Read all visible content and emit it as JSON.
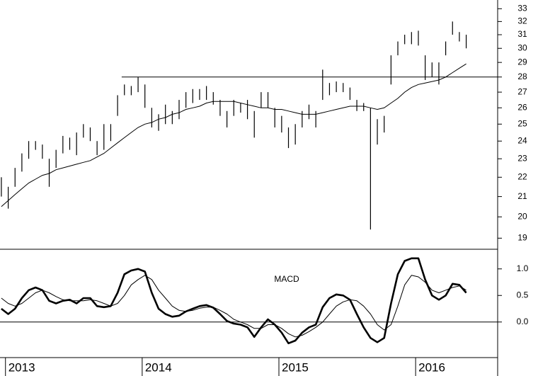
{
  "chart_data": [
    {
      "type": "ohlc",
      "x": [
        2012.97,
        2013.02,
        2013.07,
        2013.12,
        2013.17,
        2013.22,
        2013.27,
        2013.32,
        2013.37,
        2013.42,
        2013.47,
        2013.52,
        2013.57,
        2013.62,
        2013.67,
        2013.72,
        2013.77,
        2013.82,
        2013.87,
        2013.92,
        2013.97,
        2014.02,
        2014.07,
        2014.12,
        2014.17,
        2014.22,
        2014.27,
        2014.32,
        2014.37,
        2014.42,
        2014.47,
        2014.52,
        2014.57,
        2014.62,
        2014.67,
        2014.72,
        2014.77,
        2014.82,
        2014.87,
        2014.92,
        2014.97,
        2015.02,
        2015.07,
        2015.12,
        2015.17,
        2015.22,
        2015.27,
        2015.32,
        2015.37,
        2015.42,
        2015.47,
        2015.52,
        2015.57,
        2015.62,
        2015.67,
        2015.72,
        2015.77,
        2015.82,
        2015.87,
        2015.92,
        2015.97,
        2016.02,
        2016.07,
        2016.12,
        2016.17,
        2016.22,
        2016.27,
        2016.32,
        2016.37
      ],
      "high": [
        22,
        21.5,
        22.5,
        23.3,
        24,
        24,
        23.8,
        23,
        23.5,
        24.3,
        24.2,
        24.5,
        25,
        24.8,
        24,
        25,
        25,
        26.8,
        27.5,
        27.4,
        28,
        27.5,
        26,
        25.6,
        26.2,
        25.8,
        26.5,
        27,
        27.2,
        27.2,
        27.4,
        27,
        26.5,
        25.8,
        26.5,
        26.3,
        26.5,
        25.8,
        27,
        27,
        26,
        25.5,
        24.8,
        25,
        25.8,
        26.2,
        25.8,
        28.5,
        27.6,
        27.7,
        27.6,
        27.3,
        26.5,
        26.3,
        26,
        25.3,
        25.5,
        29.5,
        30.5,
        31,
        31.2,
        31.3,
        29.5,
        29,
        29,
        30.5,
        32,
        31.2,
        31
      ],
      "low": [
        21,
        20.4,
        21.5,
        22.3,
        23,
        23.5,
        23,
        21.5,
        22.5,
        23.3,
        23.5,
        23.2,
        24.2,
        24,
        23.2,
        23.5,
        24,
        25.5,
        26.8,
        26.8,
        27,
        26,
        24.8,
        24.6,
        25,
        25,
        25.3,
        26,
        26.3,
        26.5,
        26.5,
        26.2,
        25.5,
        24.8,
        25.5,
        25.7,
        25.3,
        24.2,
        26,
        26,
        24.8,
        24.5,
        23.6,
        23.8,
        24.8,
        25.3,
        24.8,
        26.5,
        26.8,
        27,
        27,
        26.5,
        25.8,
        25.8,
        19.4,
        23.8,
        24.5,
        27.5,
        29.5,
        30.3,
        30.3,
        30.2,
        27.8,
        28,
        27.5,
        29.5,
        31,
        30.5,
        30
      ],
      "moving_average": [
        20.5,
        20.8,
        21.1,
        21.4,
        21.7,
        21.9,
        22.1,
        22.2,
        22.4,
        22.5,
        22.6,
        22.7,
        22.8,
        22.9,
        23.1,
        23.3,
        23.6,
        23.9,
        24.2,
        24.5,
        24.8,
        25.0,
        25.1,
        25.3,
        25.4,
        25.6,
        25.7,
        25.9,
        26.0,
        26.1,
        26.3,
        26.4,
        26.4,
        26.4,
        26.4,
        26.3,
        26.2,
        26.1,
        26.0,
        26.0,
        25.9,
        25.9,
        25.8,
        25.7,
        25.6,
        25.6,
        25.6,
        25.7,
        25.8,
        25.9,
        26.0,
        26.1,
        26.1,
        26.1,
        26.0,
        25.9,
        26.0,
        26.3,
        26.6,
        27.0,
        27.3,
        27.5,
        27.6,
        27.7,
        27.8,
        28.0,
        28.3,
        28.6,
        28.9
      ],
      "level": 28,
      "level_start": 2013.85,
      "xlim": [
        2012.96,
        2016.6
      ],
      "ylim": [
        18.5,
        33.7
      ],
      "log_scale": true,
      "yticks": [
        19,
        20,
        21,
        22,
        23,
        24,
        25,
        26,
        27,
        28,
        29,
        30,
        31,
        32,
        33
      ]
    },
    {
      "type": "line",
      "title": "MACD",
      "x": [
        2012.97,
        2013.02,
        2013.07,
        2013.12,
        2013.17,
        2013.22,
        2013.27,
        2013.32,
        2013.37,
        2013.42,
        2013.47,
        2013.52,
        2013.57,
        2013.62,
        2013.67,
        2013.72,
        2013.77,
        2013.82,
        2013.87,
        2013.92,
        2013.97,
        2014.02,
        2014.07,
        2014.12,
        2014.17,
        2014.22,
        2014.27,
        2014.32,
        2014.37,
        2014.42,
        2014.47,
        2014.52,
        2014.57,
        2014.62,
        2014.67,
        2014.72,
        2014.77,
        2014.82,
        2014.87,
        2014.92,
        2014.97,
        2015.02,
        2015.07,
        2015.12,
        2015.17,
        2015.22,
        2015.27,
        2015.32,
        2015.37,
        2015.42,
        2015.47,
        2015.52,
        2015.57,
        2015.62,
        2015.67,
        2015.72,
        2015.77,
        2015.82,
        2015.87,
        2015.92,
        2015.97,
        2016.02,
        2016.07,
        2016.12,
        2016.17,
        2016.22,
        2016.27,
        2016.32,
        2016.37
      ],
      "series": [
        {
          "color": "#000000",
          "width": 2.6,
          "values": [
            0.25,
            0.15,
            0.25,
            0.45,
            0.6,
            0.65,
            0.6,
            0.4,
            0.35,
            0.4,
            0.42,
            0.35,
            0.45,
            0.45,
            0.3,
            0.28,
            0.3,
            0.55,
            0.9,
            0.97,
            1.0,
            0.95,
            0.55,
            0.25,
            0.15,
            0.1,
            0.12,
            0.2,
            0.25,
            0.3,
            0.32,
            0.27,
            0.15,
            0.02,
            -0.03,
            -0.05,
            -0.1,
            -0.28,
            -0.1,
            0.05,
            -0.05,
            -0.2,
            -0.4,
            -0.35,
            -0.2,
            -0.1,
            -0.05,
            0.28,
            0.45,
            0.52,
            0.5,
            0.42,
            0.15,
            -0.1,
            -0.3,
            -0.38,
            -0.3,
            0.35,
            0.9,
            1.15,
            1.2,
            1.2,
            0.8,
            0.5,
            0.42,
            0.5,
            0.72,
            0.7,
            0.55
          ]
        },
        {
          "color": "#000000",
          "width": 1,
          "values": [
            0.45,
            0.35,
            0.3,
            0.35,
            0.45,
            0.55,
            0.6,
            0.55,
            0.48,
            0.42,
            0.4,
            0.4,
            0.4,
            0.42,
            0.4,
            0.35,
            0.3,
            0.35,
            0.5,
            0.7,
            0.8,
            0.88,
            0.8,
            0.6,
            0.45,
            0.3,
            0.22,
            0.2,
            0.22,
            0.26,
            0.28,
            0.28,
            0.22,
            0.15,
            0.05,
            0.0,
            -0.05,
            -0.12,
            -0.12,
            -0.05,
            -0.05,
            -0.12,
            -0.22,
            -0.28,
            -0.25,
            -0.18,
            -0.1,
            0.0,
            0.15,
            0.3,
            0.38,
            0.42,
            0.4,
            0.3,
            0.15,
            -0.05,
            -0.15,
            -0.05,
            0.3,
            0.7,
            0.88,
            0.85,
            0.75,
            0.6,
            0.55,
            0.6,
            0.65,
            0.68,
            0.6
          ]
        }
      ],
      "hline": 0,
      "xlim": [
        2012.96,
        2016.6
      ],
      "ylim": [
        -0.67,
        1.37
      ],
      "yticks": [
        {
          "value": 1,
          "label": "1.0"
        },
        {
          "value": 0.5,
          "label": "0.5"
        },
        {
          "value": 0,
          "label": "0.0"
        }
      ],
      "xticks": [
        2013,
        2014,
        2015,
        2016
      ]
    }
  ]
}
